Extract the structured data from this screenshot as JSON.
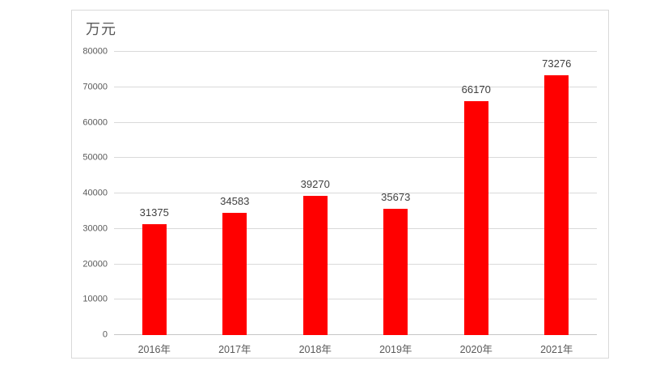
{
  "chart_data": {
    "type": "bar",
    "title": "万元",
    "categories": [
      "2016年",
      "2017年",
      "2018年",
      "2019年",
      "2020年",
      "2021年"
    ],
    "values": [
      31375,
      34583,
      39270,
      35673,
      66170,
      73276
    ],
    "data_labels": [
      "31375",
      "34583",
      "39270",
      "35673",
      "66170",
      "73276"
    ],
    "y_ticks": [
      0,
      10000,
      20000,
      30000,
      40000,
      50000,
      60000,
      70000,
      80000
    ],
    "y_tick_labels": [
      "0",
      "10000",
      "20000",
      "30000",
      "40000",
      "50000",
      "60000",
      "70000",
      "80000"
    ],
    "ylim": [
      0,
      80000
    ],
    "xlabel": "",
    "ylabel": "万元",
    "grid": true,
    "legend": "none",
    "bar_color": "#ff0000",
    "gridline_color": "#d9d9d9",
    "frame_border_color": "#d9d9d9",
    "axis_label_color": "#595959",
    "data_label_color": "#404040"
  }
}
